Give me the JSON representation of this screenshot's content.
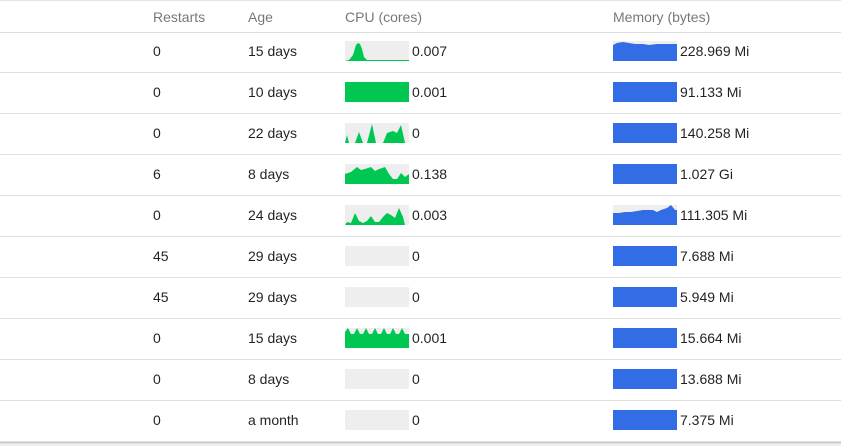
{
  "table": {
    "columns": {
      "restarts": "Restarts",
      "age": "Age",
      "cpu": "CPU (cores)",
      "memory": "Memory (bytes)"
    },
    "colors": {
      "cpu_spark": "#00c752",
      "memory_spark": "#326de6",
      "spark_bg": "#eeeeee"
    },
    "rows": [
      {
        "restarts": "0",
        "age": "15 days",
        "cpu": "0.007",
        "memory": "228.969 Mi",
        "cpu_spark": "0,20 4,19 8,14 11,4 13,2 15,3 17,8 19,16 22,19 64,19 64,20",
        "mem_spark": "0,20 0,4 4,2 10,1 16,2 22,3 30,3 36,4 44,3 52,3 60,3 64,3 64,20"
      },
      {
        "restarts": "0",
        "age": "10 days",
        "cpu": "0.001",
        "memory": "91.133 Mi",
        "cpu_spark": "0,20 0,0 64,0 64,20",
        "mem_spark": "0,20 0,0 64,0 64,20"
      },
      {
        "restarts": "0",
        "age": "22 days",
        "cpu": "0",
        "memory": "140.258 Mi",
        "cpu_spark": "0,20 2,12 4,20 10,20 14,9 18,20 22,20 27,1 31,20 38,20 42,10 48,8 52,10 56,2 60,20 64,20",
        "mem_spark": "0,20 0,0 64,0 64,20"
      },
      {
        "restarts": "6",
        "age": "8 days",
        "cpu": "0.138",
        "memory": "1.027 Gi",
        "cpu_spark": "0,20 0,10 6,8 12,3 16,6 20,5 26,3 30,7 34,5 40,3 44,10 48,15 52,15 56,9 60,13 64,10 64,20",
        "mem_spark": "0,20 0,0 64,0 64,20"
      },
      {
        "restarts": "0",
        "age": "24 days",
        "cpu": "0.003",
        "memory": "111.305 Mi",
        "cpu_spark": "0,20 2,17 6,18 10,8 14,16 18,18 22,16 26,11 30,17 34,17 38,12 42,8 46,10 50,13 54,3 58,12 60,20 64,20",
        "mem_spark": "0,20 0,8 6,8 12,7 18,7 24,6 30,5 34,5 40,5 44,7 48,5 54,3 58,0 62,5 64,5 64,20"
      },
      {
        "restarts": "45",
        "age": "29 days",
        "cpu": "0",
        "memory": "7.688 Mi",
        "cpu_spark": "",
        "mem_spark": "0,20 0,0 64,0 64,20"
      },
      {
        "restarts": "45",
        "age": "29 days",
        "cpu": "0",
        "memory": "5.949 Mi",
        "cpu_spark": "",
        "mem_spark": "0,20 0,0 64,0 64,20"
      },
      {
        "restarts": "0",
        "age": "15 days",
        "cpu": "0.001",
        "memory": "15.664 Mi",
        "cpu_spark": "0,20 0,4 3,0 6,6 9,6 12,0 15,6 18,6 21,0 24,6 27,6 30,0 33,6 36,6 39,0 42,6 45,6 48,0 51,6 54,6 57,0 60,6 64,6 64,20",
        "mem_spark": "0,20 0,0 64,0 64,20"
      },
      {
        "restarts": "0",
        "age": "8 days",
        "cpu": "0",
        "memory": "13.688 Mi",
        "cpu_spark": "",
        "mem_spark": "0,20 0,0 64,0 64,20"
      },
      {
        "restarts": "0",
        "age": "a month",
        "cpu": "0",
        "memory": "7.375 Mi",
        "cpu_spark": "",
        "mem_spark": "0,20 0,0 64,0 64,20"
      }
    ]
  }
}
